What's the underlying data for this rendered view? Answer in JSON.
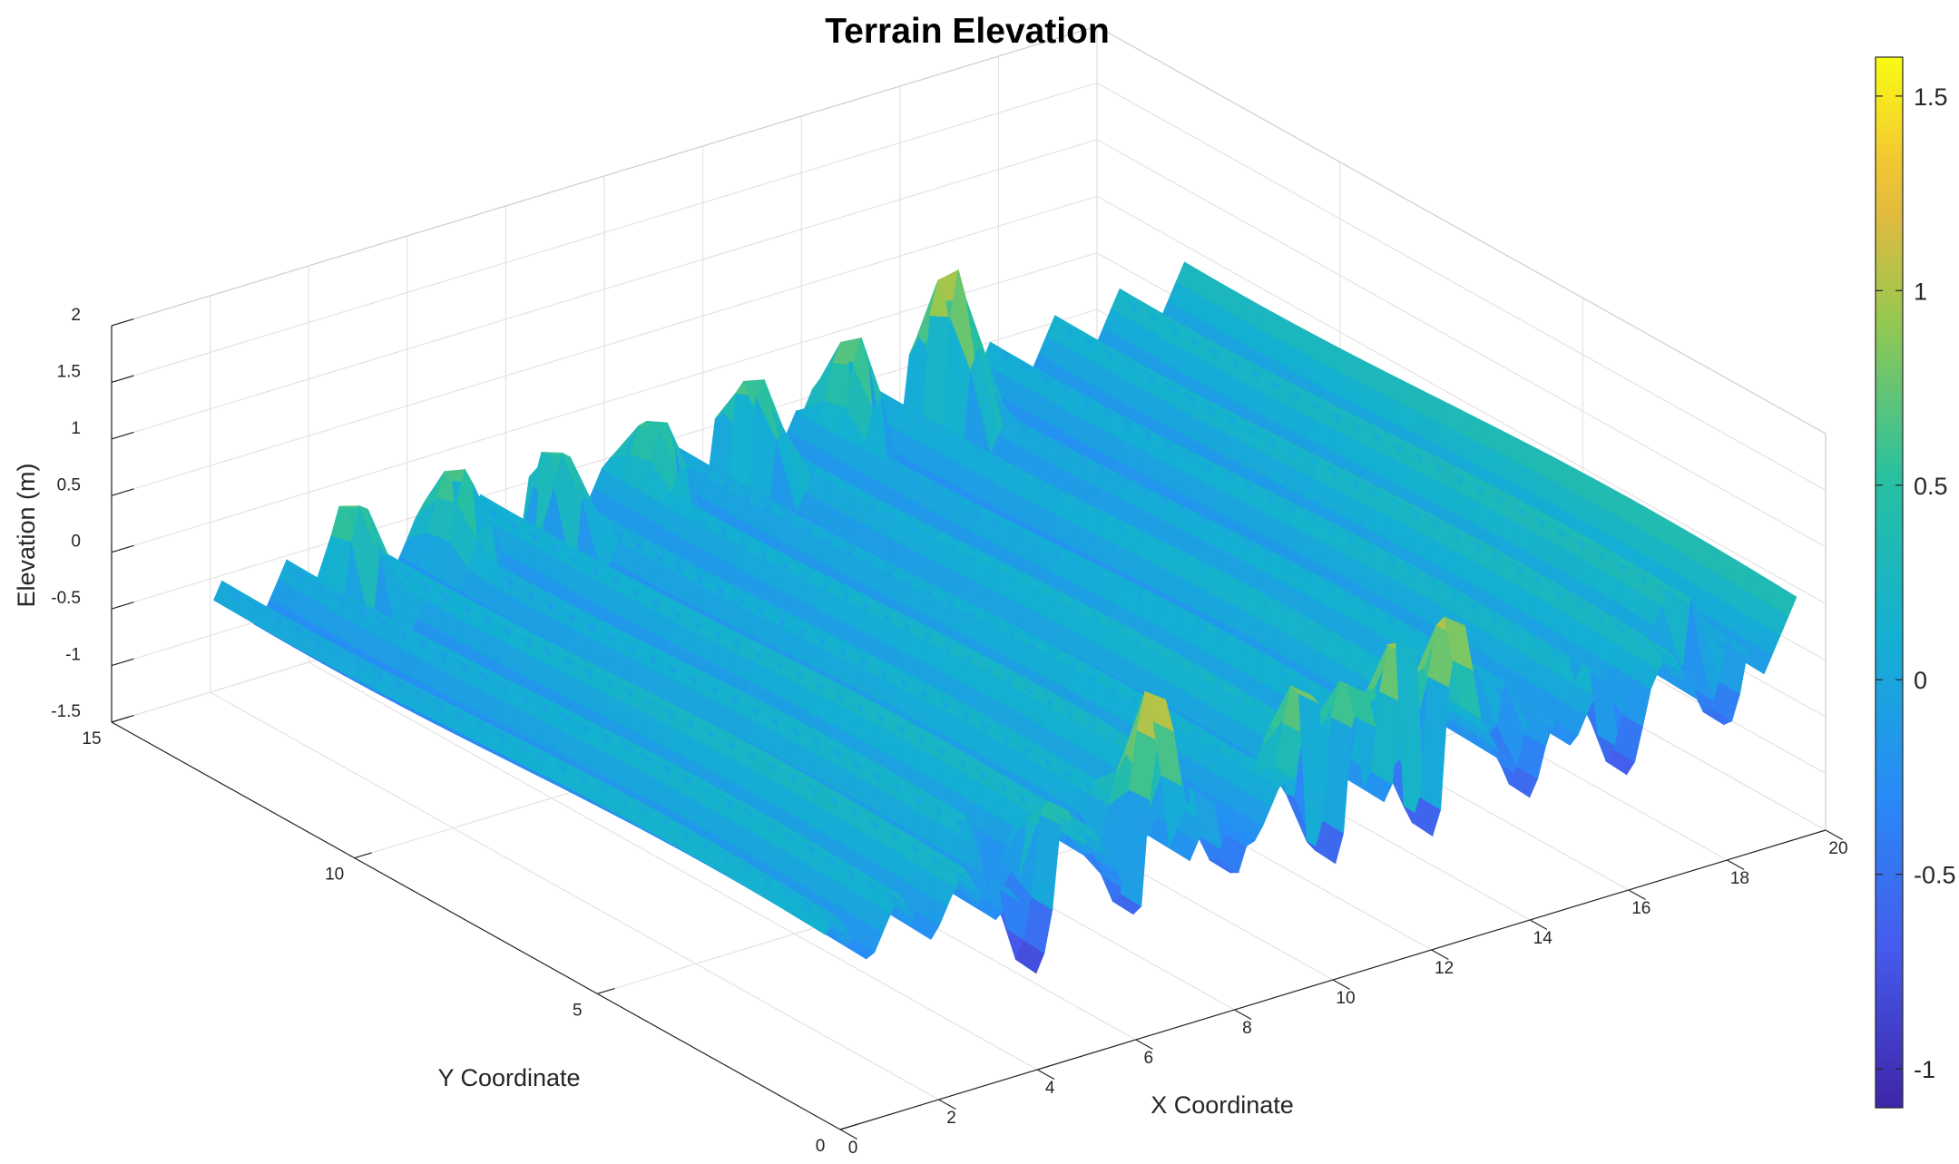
{
  "chart_data": {
    "type": "surface",
    "title": "Terrain Elevation",
    "xlabel": "X Coordinate",
    "ylabel": "Y Coordinate",
    "zlabel": "Elevation (m)",
    "xlim": [
      0,
      20
    ],
    "ylim": [
      0,
      15
    ],
    "zlim": [
      -1.5,
      2
    ],
    "x_ticks": [
      "0",
      "2",
      "4",
      "6",
      "8",
      "10",
      "12",
      "14",
      "16",
      "18",
      "20"
    ],
    "y_ticks": [
      "0",
      "5",
      "10",
      "15"
    ],
    "z_ticks": [
      "-1.5",
      "-1",
      "-0.5",
      "0",
      "0.5",
      "1",
      "1.5",
      "2"
    ],
    "colorbar": {
      "range": [
        -1.1,
        1.6
      ],
      "ticks": [
        "-1",
        "-0.5",
        "0",
        "0.5",
        "1",
        "1.5"
      ],
      "colormap": "parula"
    },
    "grid": true,
    "surface": {
      "ridge_x": [
        0.5,
        1.8,
        3.1,
        4.4,
        5.7,
        7.0,
        8.3,
        9.6,
        10.9,
        12.2,
        13.5,
        14.8,
        16.1,
        17.4,
        18.7,
        20.0
      ],
      "ridge_peak": [
        0.2,
        0.2,
        0.25,
        0.2,
        0.25,
        0.2,
        0.25,
        0.2,
        0.25,
        0.2,
        0.25,
        0.2,
        0.25,
        0.3,
        0.35,
        0.4
      ],
      "valley_min": -0.3,
      "spikes": [
        {
          "x": 2.5,
          "y": 12.5,
          "z": 0.9
        },
        {
          "x": 4.6,
          "y": 12.5,
          "z": 0.9
        },
        {
          "x": 6.6,
          "y": 12.5,
          "z": 0.8
        },
        {
          "x": 8.6,
          "y": 12.5,
          "z": 0.8
        },
        {
          "x": 10.6,
          "y": 12.5,
          "z": 0.9
        },
        {
          "x": 12.6,
          "y": 12.5,
          "z": 1.0
        },
        {
          "x": 14.6,
          "y": 12.5,
          "z": 1.4
        },
        {
          "x": 5.2,
          "y": 0.8,
          "z": 0.6
        },
        {
          "x": 7.2,
          "y": 0.8,
          "z": 1.5
        },
        {
          "x": 10.2,
          "y": 0.8,
          "z": 1.1
        },
        {
          "x": 11.2,
          "y": 0.8,
          "z": 1.0
        },
        {
          "x": 12.2,
          "y": 0.8,
          "z": 1.3
        },
        {
          "x": 13.2,
          "y": 0.8,
          "z": 1.4
        },
        {
          "x": 4.6,
          "y": 0.8,
          "z": -1.1
        },
        {
          "x": 6.6,
          "y": 0.8,
          "z": -0.8
        },
        {
          "x": 8.6,
          "y": 0.8,
          "z": -0.7
        },
        {
          "x": 10.6,
          "y": 0.8,
          "z": -0.9
        },
        {
          "x": 12.6,
          "y": 0.8,
          "z": -0.9
        },
        {
          "x": 14.6,
          "y": 0.8,
          "z": -0.8
        },
        {
          "x": 16.6,
          "y": 0.8,
          "z": -0.9
        },
        {
          "x": 18.6,
          "y": 0.8,
          "z": -0.7
        }
      ]
    }
  }
}
